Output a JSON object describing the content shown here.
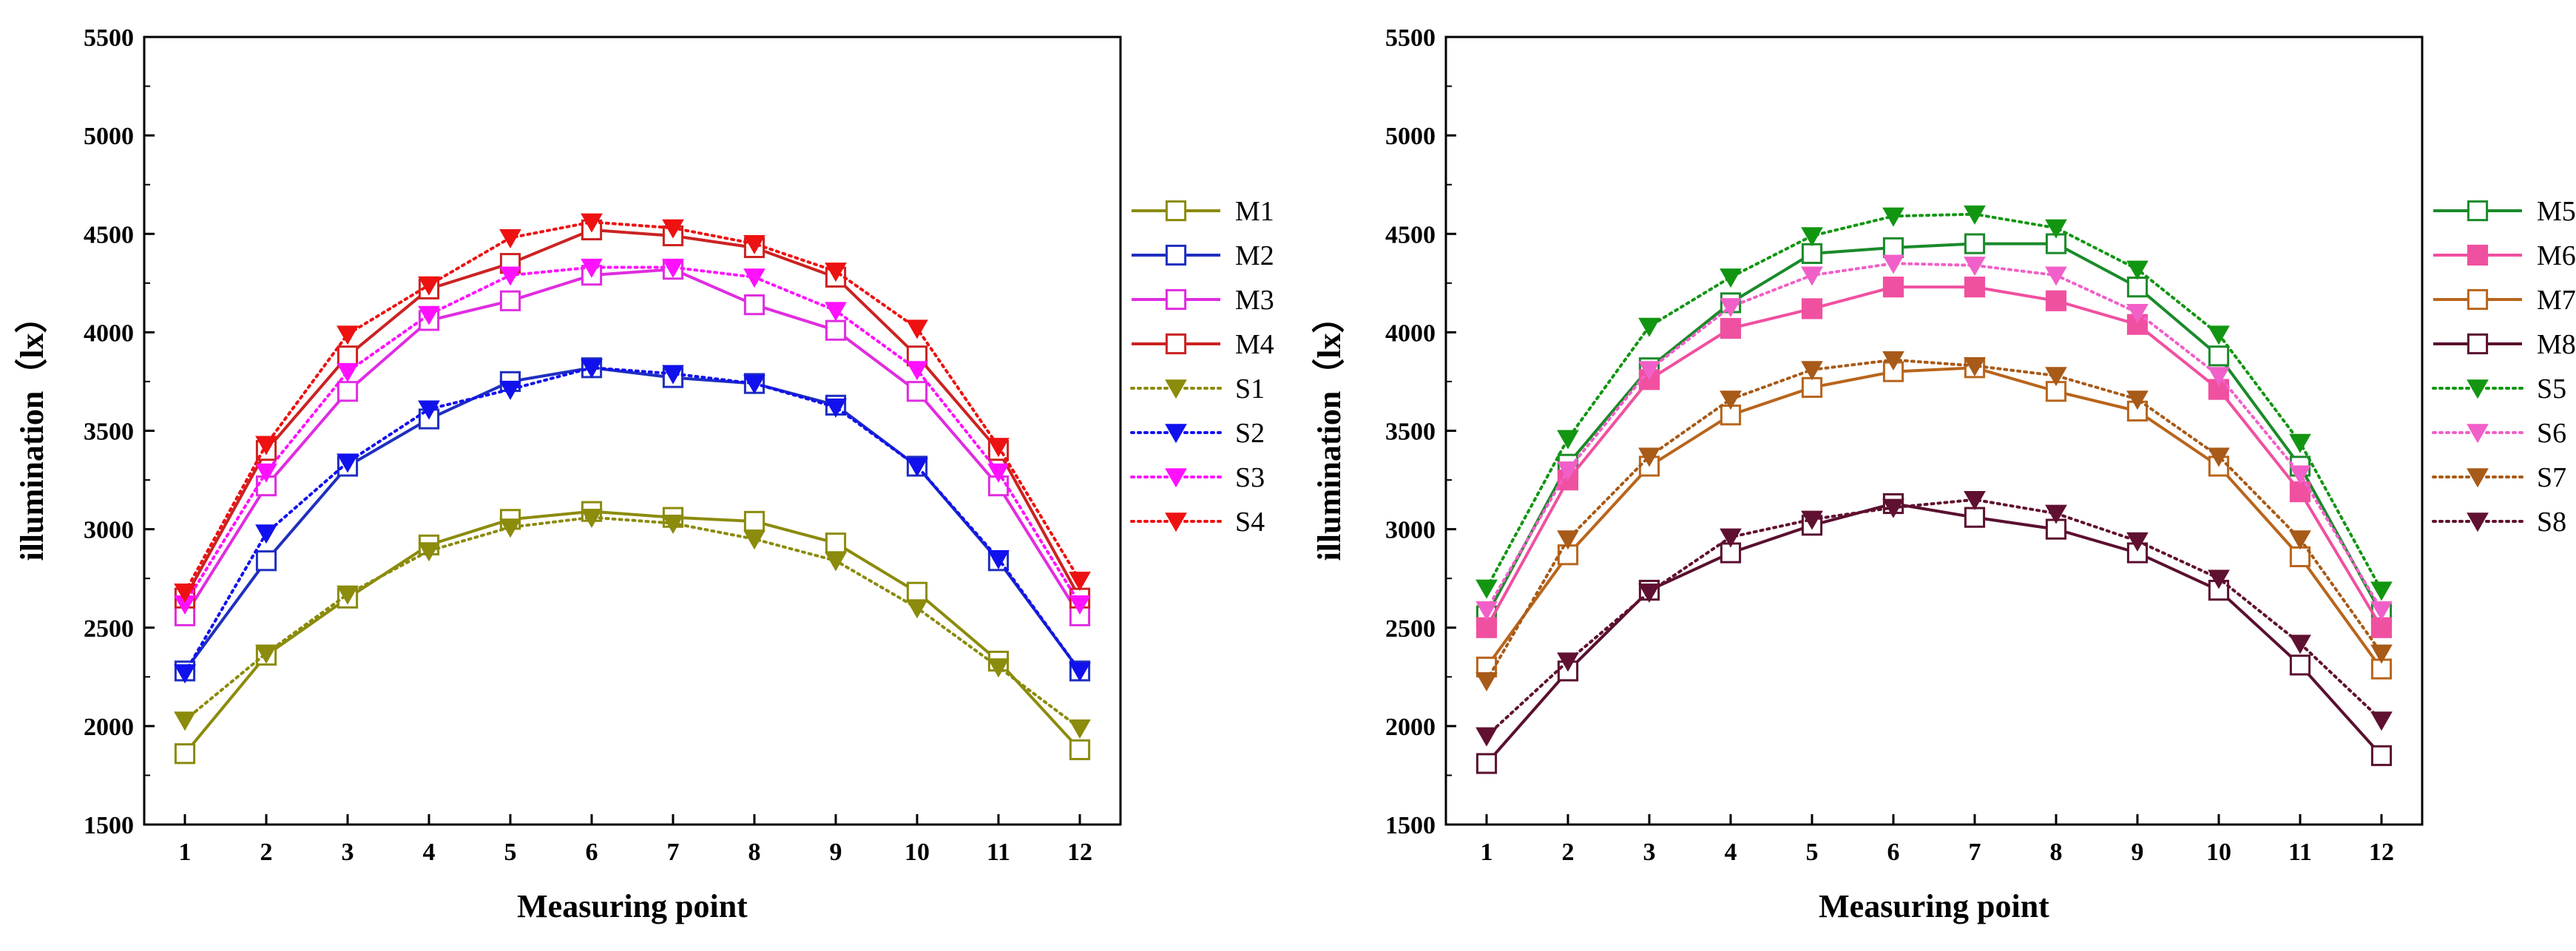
{
  "chart_data": [
    {
      "type": "line",
      "xlabel": "Measuring point",
      "ylabel": "illumination（lx）",
      "ylim": [
        1500,
        5500
      ],
      "yticks": [
        1500,
        2000,
        2500,
        3000,
        3500,
        4000,
        4500,
        5000,
        5500
      ],
      "x": [
        1,
        2,
        3,
        4,
        5,
        6,
        7,
        8,
        9,
        10,
        11,
        12
      ],
      "legend": "right",
      "grid": false,
      "series": [
        {
          "name": "M1",
          "color": "#8b8b0c",
          "style": "solid",
          "marker": "square-open",
          "values": [
            1860,
            2360,
            2650,
            2920,
            3050,
            3090,
            3060,
            3040,
            2930,
            2680,
            2330,
            1880
          ]
        },
        {
          "name": "M2",
          "color": "#1f2fbf",
          "style": "solid",
          "marker": "square-open",
          "values": [
            2280,
            2840,
            3320,
            3560,
            3750,
            3820,
            3770,
            3740,
            3630,
            3320,
            2840,
            2280
          ]
        },
        {
          "name": "M3",
          "color": "#e02ce0",
          "style": "solid",
          "marker": "square-open",
          "values": [
            2560,
            3220,
            3700,
            4060,
            4160,
            4290,
            4320,
            4140,
            4010,
            3700,
            3220,
            2560
          ]
        },
        {
          "name": "M4",
          "color": "#cc2222",
          "style": "solid",
          "marker": "square-open",
          "values": [
            2650,
            3400,
            3880,
            4220,
            4350,
            4520,
            4490,
            4430,
            4280,
            3880,
            3400,
            2650
          ]
        },
        {
          "name": "S1",
          "color": "#8b8b0c",
          "style": "dotted",
          "marker": "triangle-down",
          "values": [
            2030,
            2370,
            2670,
            2890,
            3010,
            3060,
            3030,
            2950,
            2840,
            2600,
            2300,
            1990
          ]
        },
        {
          "name": "S2",
          "color": "#1111ee",
          "style": "dotted",
          "marker": "triangle-down",
          "values": [
            2270,
            2980,
            3340,
            3610,
            3710,
            3820,
            3790,
            3740,
            3620,
            3320,
            2850,
            2280
          ]
        },
        {
          "name": "S3",
          "color": "#ff11ff",
          "style": "dotted",
          "marker": "triangle-down",
          "values": [
            2620,
            3290,
            3800,
            4090,
            4290,
            4330,
            4330,
            4280,
            4110,
            3810,
            3290,
            2620
          ]
        },
        {
          "name": "S4",
          "color": "#ee1111",
          "style": "dotted",
          "marker": "triangle-down",
          "values": [
            2680,
            3430,
            3990,
            4240,
            4480,
            4560,
            4530,
            4450,
            4310,
            4020,
            3420,
            2740
          ]
        }
      ]
    },
    {
      "type": "line",
      "xlabel": "Measuring point",
      "ylabel": "illumination（lx）",
      "ylim": [
        1500,
        5500
      ],
      "yticks": [
        1500,
        2000,
        2500,
        3000,
        3500,
        4000,
        4500,
        5000,
        5500
      ],
      "x": [
        1,
        2,
        3,
        4,
        5,
        6,
        7,
        8,
        9,
        10,
        11,
        12
      ],
      "legend": "right",
      "grid": false,
      "series": [
        {
          "name": "M5",
          "color": "#1a8a2a",
          "style": "solid",
          "marker": "square-open",
          "values": [
            2560,
            3330,
            3820,
            4150,
            4400,
            4430,
            4450,
            4450,
            4230,
            3880,
            3320,
            2570
          ]
        },
        {
          "name": "M6",
          "color": "#f050a0",
          "style": "solid",
          "marker": "square-filled",
          "values": [
            2500,
            3250,
            3760,
            4020,
            4120,
            4230,
            4230,
            4160,
            4040,
            3710,
            3190,
            2500
          ]
        },
        {
          "name": "M7",
          "color": "#b8651c",
          "style": "solid",
          "marker": "square-open",
          "values": [
            2300,
            2870,
            3320,
            3580,
            3720,
            3800,
            3820,
            3700,
            3600,
            3320,
            2860,
            2290
          ]
        },
        {
          "name": "M8",
          "color": "#5a1030",
          "style": "solid",
          "marker": "square-open",
          "values": [
            1810,
            2280,
            2690,
            2880,
            3020,
            3130,
            3060,
            3000,
            2880,
            2690,
            2310,
            1850
          ]
        },
        {
          "name": "S5",
          "color": "#129612",
          "style": "dotted",
          "marker": "triangle-down",
          "values": [
            2700,
            3460,
            4030,
            4280,
            4490,
            4590,
            4600,
            4530,
            4320,
            3990,
            3440,
            2690
          ]
        },
        {
          "name": "S6",
          "color": "#f060c8",
          "style": "dotted",
          "marker": "triangle-down",
          "values": [
            2590,
            3300,
            3810,
            4130,
            4290,
            4350,
            4340,
            4290,
            4100,
            3780,
            3280,
            2590
          ]
        },
        {
          "name": "S7",
          "color": "#a85a18",
          "style": "dotted",
          "marker": "triangle-down",
          "values": [
            2230,
            2950,
            3370,
            3660,
            3810,
            3860,
            3830,
            3780,
            3660,
            3370,
            2950,
            2370
          ]
        },
        {
          "name": "S8",
          "color": "#601030",
          "style": "dotted",
          "marker": "triangle-down",
          "values": [
            1950,
            2330,
            2680,
            2960,
            3050,
            3110,
            3150,
            3080,
            2940,
            2750,
            2420,
            2030
          ]
        }
      ]
    }
  ]
}
